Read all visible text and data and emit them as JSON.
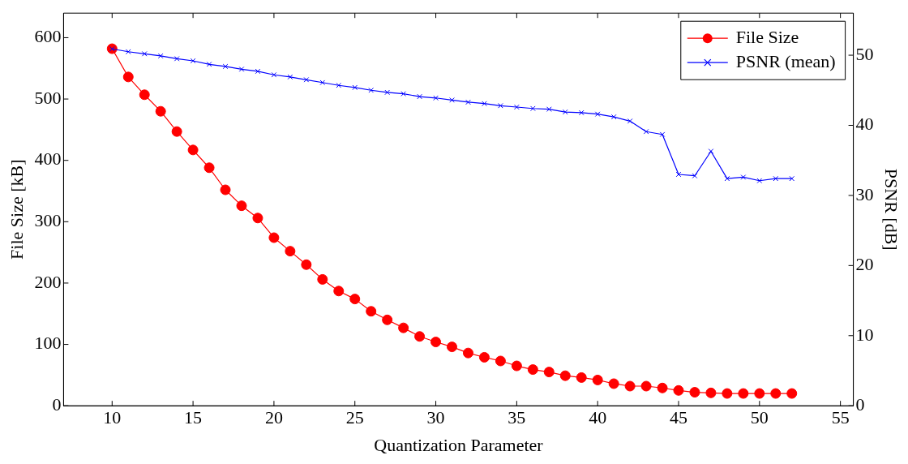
{
  "chart_data": {
    "type": "line",
    "xlabel": "Quantization Parameter",
    "ylabel": "File Size [kB]",
    "y2label": "PSNR [dB]",
    "x": [
      10,
      11,
      12,
      13,
      14,
      15,
      16,
      17,
      18,
      19,
      20,
      21,
      22,
      23,
      24,
      25,
      26,
      27,
      28,
      29,
      30,
      31,
      32,
      33,
      34,
      35,
      36,
      37,
      38,
      39,
      40,
      41,
      42,
      43,
      44,
      45,
      46,
      47,
      48,
      49,
      50,
      51,
      52
    ],
    "series": [
      {
        "name": "File Size",
        "color": "#ff0000",
        "marker": "circle",
        "values": [
          582,
          536,
          507,
          480,
          447,
          417,
          388,
          352,
          326,
          306,
          274,
          252,
          230,
          206,
          187,
          174,
          154,
          140,
          127,
          113,
          104,
          96,
          86,
          79,
          73,
          65,
          59,
          55,
          49,
          46,
          42,
          36,
          32,
          32,
          29,
          25,
          22,
          21,
          20,
          20,
          20,
          20,
          20
        ]
      },
      {
        "name": "PSNR (mean)",
        "color": "#0000ff",
        "marker": "cross",
        "axis": "y2",
        "values": [
          50.9,
          50.5,
          50.2,
          49.9,
          49.5,
          49.2,
          48.7,
          48.4,
          48.0,
          47.7,
          47.2,
          46.9,
          46.5,
          46.1,
          45.7,
          45.4,
          45.0,
          44.7,
          44.5,
          44.1,
          43.9,
          43.6,
          43.3,
          43.1,
          42.8,
          42.6,
          42.4,
          42.3,
          41.9,
          41.8,
          41.6,
          41.2,
          40.6,
          39.1,
          38.7,
          33.0,
          32.8,
          36.3,
          32.4,
          32.6,
          32.1,
          32.4,
          32.4
        ]
      }
    ],
    "xlim": [
      7,
      55.8
    ],
    "xticks": [
      10,
      15,
      20,
      25,
      30,
      35,
      40,
      45,
      50,
      55
    ],
    "ylim": [
      0,
      640
    ],
    "yticks": [
      0,
      100,
      200,
      300,
      400,
      500,
      600
    ],
    "y2lim": [
      0,
      56
    ],
    "y2ticks": [
      0,
      10,
      20,
      30,
      40,
      50
    ],
    "grid": false,
    "legend": "top right",
    "line_style": "solid"
  }
}
